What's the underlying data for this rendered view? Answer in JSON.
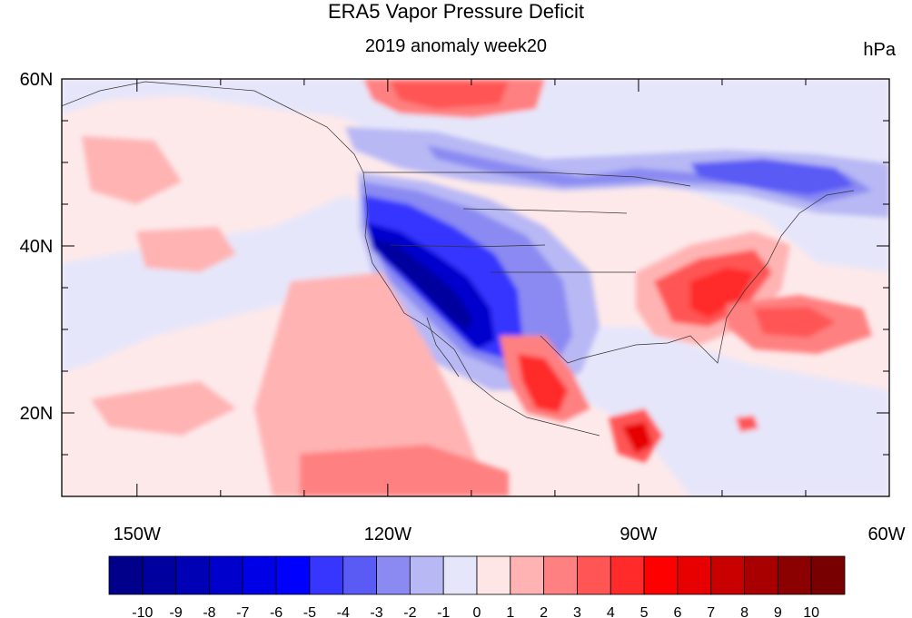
{
  "title": "ERA5 Vapor Pressure Deficit",
  "subtitle": "2019 anomaly week20",
  "units": "hPa",
  "map": {
    "lon_range": [
      -159,
      -60
    ],
    "lat_range": [
      10,
      60
    ],
    "lon_ticks": [
      {
        "lon": -150,
        "label": "150W"
      },
      {
        "lon": -120,
        "label": "120W"
      },
      {
        "lon": -90,
        "label": "90W"
      },
      {
        "lon": -60,
        "label": "60W"
      }
    ],
    "lat_ticks": [
      {
        "lat": 60,
        "label": "60N"
      },
      {
        "lat": 40,
        "label": "40N"
      },
      {
        "lat": 20,
        "label": "20N"
      }
    ],
    "background_color": "#fde9ea"
  },
  "colorbar": {
    "labels": [
      "-10",
      "-9",
      "-8",
      "-7",
      "-6",
      "-5",
      "-4",
      "-3",
      "-2",
      "-1",
      "0",
      "1",
      "2",
      "3",
      "4",
      "5",
      "6",
      "7",
      "8",
      "9",
      "10"
    ],
    "colors": [
      "#00008b",
      "#00009e",
      "#0000b4",
      "#0000cd",
      "#0000e6",
      "#0000ff",
      "#3636ff",
      "#5a5af5",
      "#8a8af2",
      "#b8b8f5",
      "#e6e6fa",
      "#ffe6e6",
      "#ffb3b3",
      "#ff8080",
      "#ff5555",
      "#ff2a2a",
      "#ff0000",
      "#e60000",
      "#c80000",
      "#a80000",
      "#8b0000",
      "#780000"
    ]
  }
}
